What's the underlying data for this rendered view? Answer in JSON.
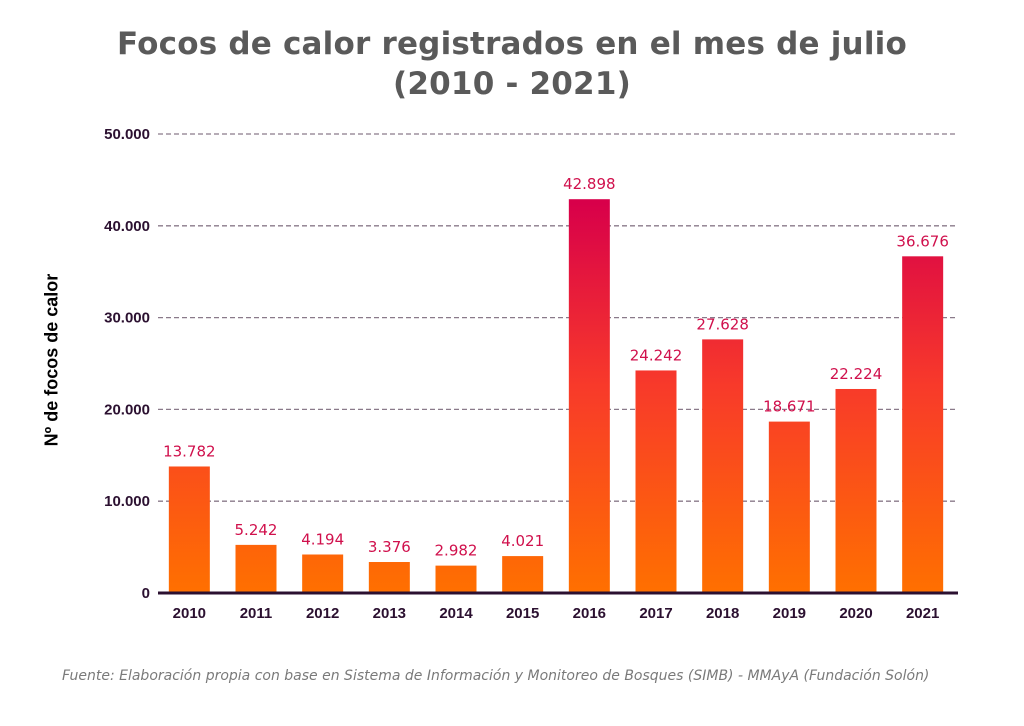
{
  "chart_data": {
    "type": "bar",
    "title_line1": "Focos de calor registrados en el mes de julio",
    "title_line2": "(2010 - 2021)",
    "xlabel": "",
    "ylabel": "Nº de focos de calor",
    "categories": [
      "2010",
      "2011",
      "2012",
      "2013",
      "2014",
      "2015",
      "2016",
      "2017",
      "2018",
      "2019",
      "2020",
      "2021"
    ],
    "values": [
      13782,
      5242,
      4194,
      3376,
      2982,
      4021,
      42898,
      24242,
      27628,
      18671,
      22224,
      36676
    ],
    "data_labels": [
      "13.782",
      "5.242",
      "4.194",
      "3.376",
      "2.982",
      "4.021",
      "42.898",
      "24.242",
      "27.628",
      "18.671",
      "22.224",
      "36.676"
    ],
    "ylim": [
      0,
      50000
    ],
    "yticks": [
      0,
      10000,
      20000,
      30000,
      40000,
      50000
    ],
    "ytick_labels": [
      "0",
      "10.000",
      "20.000",
      "30.000",
      "40.000",
      "50.000"
    ],
    "grid": "horizontal-dashed",
    "legend": "none",
    "colors": {
      "bar_bottom": "#ff7000",
      "bar_mid": "#f83a2a",
      "bar_top": "#d8004a",
      "data_label": "#d0104c",
      "axis": "#2b1030",
      "grid": "#8a7a8a"
    }
  },
  "source_note": "Fuente: Elaboración propia con base en Sistema de Información y Monitoreo de Bosques (SIMB) - MMAyA (Fundación Solón)"
}
